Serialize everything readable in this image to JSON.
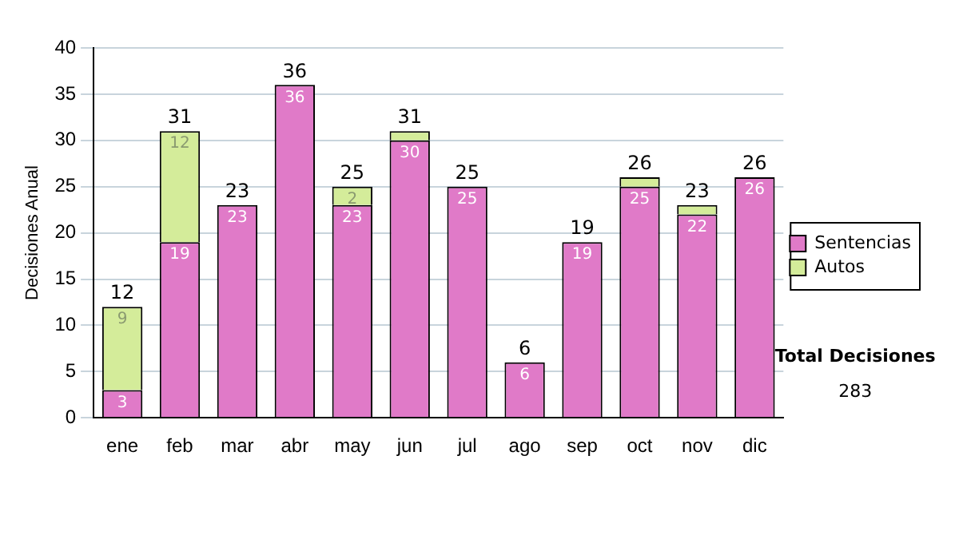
{
  "chart_data": {
    "type": "bar",
    "stacked": true,
    "ylabel": "Decisiones Anual",
    "categories": [
      "ene",
      "feb",
      "mar",
      "abr",
      "may",
      "jun",
      "jul",
      "ago",
      "sep",
      "oct",
      "nov",
      "dic"
    ],
    "series": [
      {
        "name": "Sentencias",
        "color": "#e07ac8",
        "values": [
          3,
          19,
          23,
          36,
          23,
          30,
          25,
          6,
          19,
          25,
          22,
          26
        ],
        "value_labels": [
          "3",
          "19",
          "23",
          "36",
          "23",
          "30",
          "25",
          "6",
          "19",
          "25",
          "22",
          "26"
        ]
      },
      {
        "name": "Autos",
        "color": "#d4ec9a",
        "values": [
          9,
          12,
          0,
          0,
          2,
          1,
          0,
          0,
          0,
          1,
          1,
          0
        ],
        "value_labels": [
          "9",
          "12",
          null,
          null,
          "2",
          null,
          null,
          null,
          null,
          null,
          null,
          null
        ]
      }
    ],
    "totals": [
      "12",
      "31",
      "23",
      "36",
      "25",
      "31",
      "25",
      "6",
      "19",
      "26",
      "23",
      "26"
    ],
    "ylim": [
      0,
      40
    ],
    "yticks": [
      0,
      5,
      10,
      15,
      20,
      25,
      30,
      35,
      40
    ],
    "grid": "y",
    "legend": "right",
    "annotations": [
      "Total Decisiones",
      "283"
    ]
  }
}
